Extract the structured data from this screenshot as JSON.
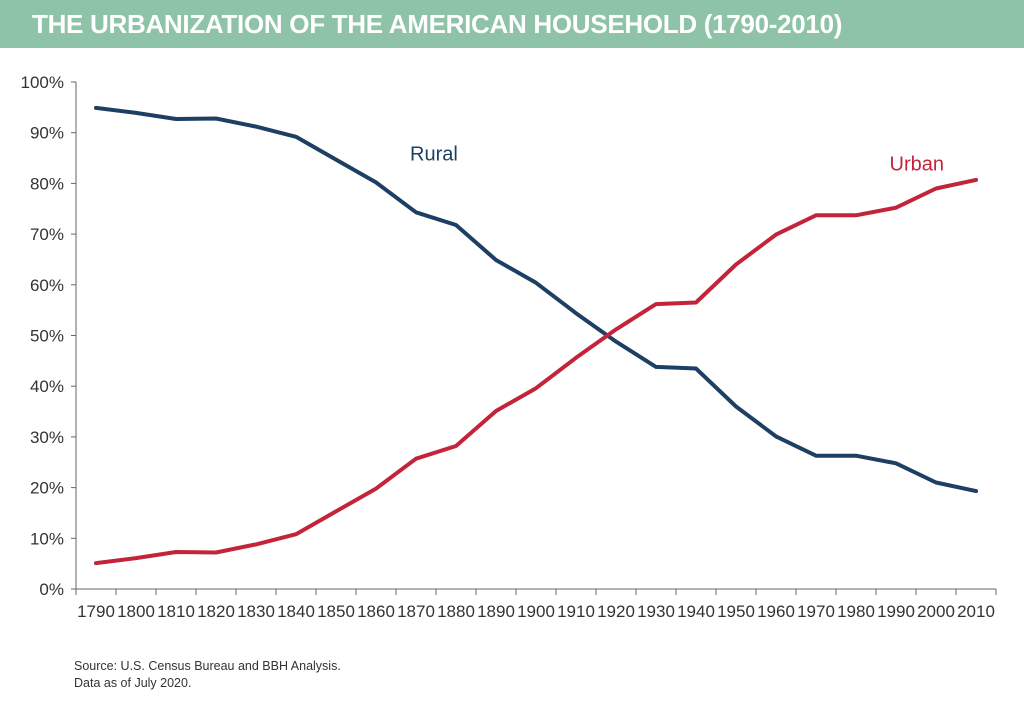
{
  "colors": {
    "title_bar": "#8ec3a7",
    "rural": "#1d3f63",
    "urban": "#c3243a",
    "axis": "#666666"
  },
  "header": {
    "title": "THE URBANIZATION OF THE AMERICAN HOUSEHOLD (1790-2010)"
  },
  "footer": {
    "source": "Source: U.S. Census Bureau and BBH Analysis.",
    "date_note": "Data as of July 2020."
  },
  "chart_data": {
    "type": "line",
    "title": "THE URBANIZATION OF THE AMERICAN HOUSEHOLD (1790-2010)",
    "xlabel": "",
    "ylabel": "",
    "ylim": [
      0,
      100
    ],
    "y_ticks": [
      "0%",
      "10%",
      "20%",
      "30%",
      "40%",
      "50%",
      "60%",
      "70%",
      "80%",
      "90%",
      "100%"
    ],
    "x_ticks": [
      "1790",
      "1800",
      "1810",
      "1820",
      "1830",
      "1840",
      "1850",
      "1860",
      "1870",
      "1880",
      "1890",
      "1900",
      "1910",
      "1920",
      "1930",
      "1940",
      "1950",
      "1960",
      "1970",
      "1980",
      "1990",
      "2000",
      "2010"
    ],
    "x": [
      1790,
      1800,
      1810,
      1820,
      1830,
      1840,
      1850,
      1860,
      1870,
      1880,
      1890,
      1900,
      1910,
      1920,
      1930,
      1940,
      1950,
      1960,
      1970,
      1980,
      1990,
      2000,
      2010
    ],
    "series": [
      {
        "name": "Rural",
        "label": "Rural",
        "values": [
          94.9,
          93.9,
          92.7,
          92.8,
          91.2,
          89.2,
          84.7,
          80.2,
          74.3,
          71.8,
          64.9,
          60.4,
          54.4,
          48.8,
          43.8,
          43.5,
          36.0,
          30.1,
          26.3,
          26.3,
          24.8,
          21.0,
          19.3
        ]
      },
      {
        "name": "Urban",
        "label": "Urban",
        "values": [
          5.1,
          6.1,
          7.3,
          7.2,
          8.8,
          10.8,
          15.3,
          19.8,
          25.7,
          28.2,
          35.1,
          39.6,
          45.6,
          51.2,
          56.2,
          56.5,
          64.0,
          69.9,
          73.7,
          73.7,
          75.2,
          79.0,
          80.7
        ]
      }
    ],
    "grid": false,
    "legend": "inline labels near lines"
  }
}
